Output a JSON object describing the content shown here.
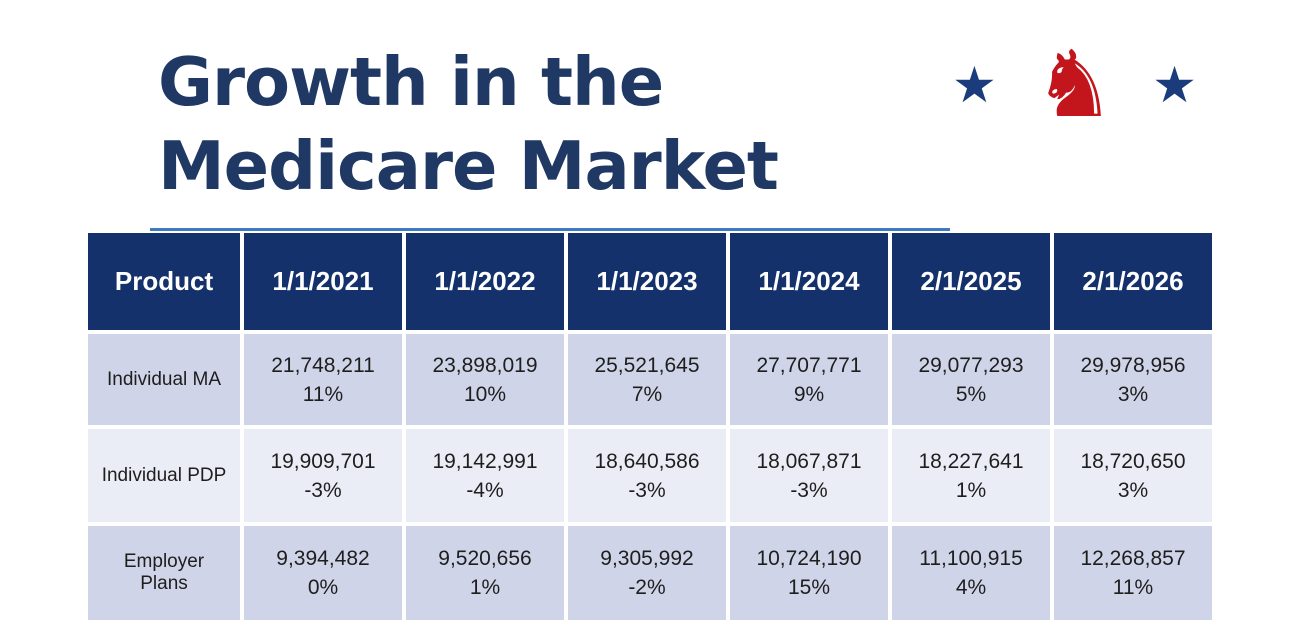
{
  "title": {
    "line1": "Growth in the",
    "line2": "Medicare Market"
  },
  "logo": {
    "star_glyph": "★",
    "knight_glyph": "♞"
  },
  "colors": {
    "title_navy": "#1F3864",
    "header_navy": "#14316B",
    "row_band_dark": "#CFD4E8",
    "row_band_light": "#EBEDF6",
    "underline_blue": "#3D7AC1",
    "star_navy": "#1A3B7C",
    "knight_red": "#C3161C"
  },
  "table": {
    "columns": [
      "Product",
      "1/1/2021",
      "1/1/2022",
      "1/1/2023",
      "1/1/2024",
      "2/1/2025",
      "2/1/2026"
    ],
    "rows": [
      {
        "product": "Individual MA",
        "cells": [
          {
            "value": "21,748,211",
            "pct": "11%"
          },
          {
            "value": "23,898,019",
            "pct": "10%"
          },
          {
            "value": "25,521,645",
            "pct": "7%"
          },
          {
            "value": "27,707,771",
            "pct": "9%"
          },
          {
            "value": "29,077,293",
            "pct": "5%"
          },
          {
            "value": "29,978,956",
            "pct": "3%"
          }
        ]
      },
      {
        "product": "Individual PDP",
        "cells": [
          {
            "value": "19,909,701",
            "pct": "-3%"
          },
          {
            "value": "19,142,991",
            "pct": "-4%"
          },
          {
            "value": "18,640,586",
            "pct": "-3%"
          },
          {
            "value": "18,067,871",
            "pct": "-3%"
          },
          {
            "value": "18,227,641",
            "pct": "1%"
          },
          {
            "value": "18,720,650",
            "pct": "3%"
          }
        ]
      },
      {
        "product": "Employer Plans",
        "cells": [
          {
            "value": "9,394,482",
            "pct": "0%"
          },
          {
            "value": "9,520,656",
            "pct": "1%"
          },
          {
            "value": "9,305,992",
            "pct": "-2%"
          },
          {
            "value": "10,724,190",
            "pct": "15%"
          },
          {
            "value": "11,100,915",
            "pct": "4%"
          },
          {
            "value": "12,268,857",
            "pct": "11%"
          }
        ]
      }
    ]
  },
  "chart_data": {
    "type": "table",
    "title": "Growth in the Medicare Market",
    "columns": [
      "Product",
      "1/1/2021",
      "1/1/2022",
      "1/1/2023",
      "1/1/2024",
      "2/1/2025",
      "2/1/2026"
    ],
    "series": [
      {
        "name": "Individual MA",
        "enrollment": [
          21748211,
          23898019,
          25521645,
          27707771,
          29077293,
          29978956
        ],
        "growth_pct": [
          11,
          10,
          7,
          9,
          5,
          3
        ]
      },
      {
        "name": "Individual PDP",
        "enrollment": [
          19909701,
          19142991,
          18640586,
          18067871,
          18227641,
          18720650
        ],
        "growth_pct": [
          -3,
          -4,
          -3,
          -3,
          1,
          3
        ]
      },
      {
        "name": "Employer Plans",
        "enrollment": [
          9394482,
          9520656,
          9305992,
          10724190,
          11100915,
          12268857
        ],
        "growth_pct": [
          0,
          1,
          -2,
          15,
          4,
          11
        ]
      }
    ]
  }
}
